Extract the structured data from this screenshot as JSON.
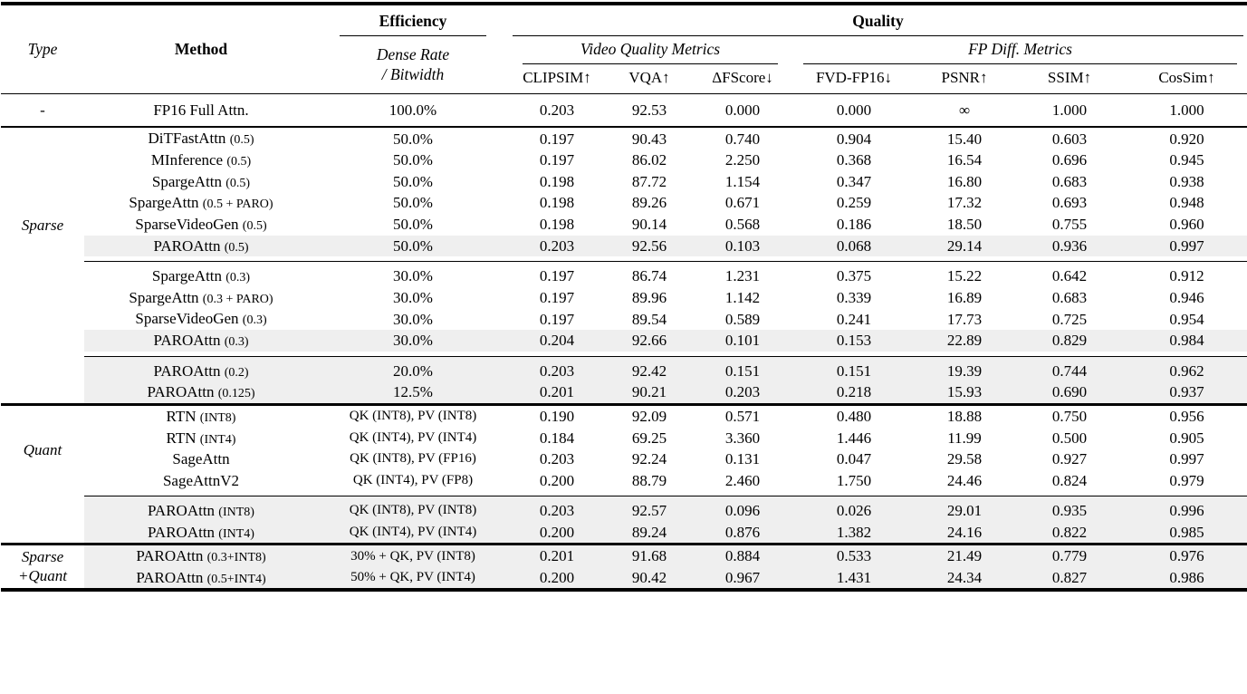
{
  "table": {
    "colors": {
      "highlight": "#efefef",
      "rule": "#000000",
      "text": "#000000"
    },
    "header": {
      "type": "Type",
      "method": "Method",
      "efficiency": "Efficiency",
      "quality": "Quality",
      "dense_rate_line1": "Dense Rate",
      "dense_rate_line2": "/ Bitwidth",
      "video_quality_metrics": "Video Quality Metrics",
      "fp_diff_metrics": "FP Diff. Metrics",
      "metric_columns": [
        "CLIPSIM↑",
        "VQA↑",
        "ΔFScore↓",
        "FVD-FP16↓",
        "PSNR↑",
        "SSIM↑",
        "CosSim↑"
      ]
    },
    "sections": [
      {
        "type_label_lines": [
          "-"
        ],
        "rule_after": "medium",
        "groups": [
          {
            "rows": [
              {
                "method": "FP16 Full Attn.",
                "dense": "100.0%",
                "highlight": false,
                "fp16": true,
                "values": [
                  "0.203",
                  "92.53",
                  "0.000",
                  "0.000",
                  "∞",
                  "1.000",
                  "1.000"
                ]
              }
            ]
          }
        ]
      },
      {
        "type_label_lines": [
          "Sparse"
        ],
        "rule_after": "thick",
        "groups": [
          {
            "rows": [
              {
                "method": "DiTFastAttn (0.5)",
                "dense": "50.0%",
                "highlight": false,
                "values": [
                  "0.197",
                  "90.43",
                  "0.740",
                  "0.904",
                  "15.40",
                  "0.603",
                  "0.920"
                ]
              },
              {
                "method": "MInference (0.5)",
                "dense": "50.0%",
                "highlight": false,
                "values": [
                  "0.197",
                  "86.02",
                  "2.250",
                  "0.368",
                  "16.54",
                  "0.696",
                  "0.945"
                ]
              },
              {
                "method": "SpargeAttn (0.5)",
                "dense": "50.0%",
                "highlight": false,
                "values": [
                  "0.198",
                  "87.72",
                  "1.154",
                  "0.347",
                  "16.80",
                  "0.683",
                  "0.938"
                ]
              },
              {
                "method": "SpargeAttn (0.5 + PARO)",
                "dense": "50.0%",
                "highlight": false,
                "values": [
                  "0.198",
                  "89.26",
                  "0.671",
                  "0.259",
                  "17.32",
                  "0.693",
                  "0.948"
                ]
              },
              {
                "method": "SparseVideoGen (0.5)",
                "dense": "50.0%",
                "highlight": false,
                "values": [
                  "0.198",
                  "90.14",
                  "0.568",
                  "0.186",
                  "18.50",
                  "0.755",
                  "0.960"
                ]
              },
              {
                "method": "PAROAttn (0.5)",
                "dense": "50.0%",
                "highlight": true,
                "values": [
                  "0.203",
                  "92.56",
                  "0.103",
                  "0.068",
                  "29.14",
                  "0.936",
                  "0.997"
                ]
              }
            ]
          },
          {
            "rows": [
              {
                "method": "SpargeAttn (0.3)",
                "dense": "30.0%",
                "highlight": false,
                "values": [
                  "0.197",
                  "86.74",
                  "1.231",
                  "0.375",
                  "15.22",
                  "0.642",
                  "0.912"
                ]
              },
              {
                "method": "SpargeAttn (0.3 + PARO)",
                "dense": "30.0%",
                "highlight": false,
                "values": [
                  "0.197",
                  "89.96",
                  "1.142",
                  "0.339",
                  "16.89",
                  "0.683",
                  "0.946"
                ]
              },
              {
                "method": "SparseVideoGen (0.3)",
                "dense": "30.0%",
                "highlight": false,
                "values": [
                  "0.197",
                  "89.54",
                  "0.589",
                  "0.241",
                  "17.73",
                  "0.725",
                  "0.954"
                ]
              },
              {
                "method": "PAROAttn (0.3)",
                "dense": "30.0%",
                "highlight": true,
                "values": [
                  "0.204",
                  "92.66",
                  "0.101",
                  "0.153",
                  "22.89",
                  "0.829",
                  "0.984"
                ]
              }
            ]
          },
          {
            "rows": [
              {
                "method": "PAROAttn (0.2)",
                "dense": "20.0%",
                "highlight": true,
                "values": [
                  "0.203",
                  "92.42",
                  "0.151",
                  "0.151",
                  "19.39",
                  "0.744",
                  "0.962"
                ]
              },
              {
                "method": "PAROAttn (0.125)",
                "dense": "12.5%",
                "highlight": true,
                "values": [
                  "0.201",
                  "90.21",
                  "0.203",
                  "0.218",
                  "15.93",
                  "0.690",
                  "0.937"
                ]
              }
            ]
          }
        ]
      },
      {
        "type_label_lines": [
          "Quant"
        ],
        "rule_after": "thick",
        "groups": [
          {
            "rows": [
              {
                "method": "RTN (INT8)",
                "dense": "QK (INT8), PV (INT8)",
                "highlight": false,
                "values": [
                  "0.190",
                  "92.09",
                  "0.571",
                  "0.480",
                  "18.88",
                  "0.750",
                  "0.956"
                ]
              },
              {
                "method": "RTN (INT4)",
                "dense": "QK (INT4), PV (INT4)",
                "highlight": false,
                "values": [
                  "0.184",
                  "69.25",
                  "3.360",
                  "1.446",
                  "11.99",
                  "0.500",
                  "0.905"
                ]
              },
              {
                "method": "SageAttn",
                "dense": "QK (INT8), PV (FP16)",
                "highlight": false,
                "values": [
                  "0.203",
                  "92.24",
                  "0.131",
                  "0.047",
                  "29.58",
                  "0.927",
                  "0.997"
                ]
              },
              {
                "method": "SageAttnV2",
                "dense": "QK (INT4), PV (FP8)",
                "highlight": false,
                "values": [
                  "0.200",
                  "88.79",
                  "2.460",
                  "1.750",
                  "24.46",
                  "0.824",
                  "0.979"
                ]
              }
            ]
          },
          {
            "rows": [
              {
                "method": "PAROAttn (INT8)",
                "dense": "QK (INT8), PV (INT8)",
                "highlight": true,
                "values": [
                  "0.203",
                  "92.57",
                  "0.096",
                  "0.026",
                  "29.01",
                  "0.935",
                  "0.996"
                ]
              },
              {
                "method": "PAROAttn (INT4)",
                "dense": "QK (INT4), PV (INT4)",
                "highlight": true,
                "values": [
                  "0.200",
                  "89.24",
                  "0.876",
                  "1.382",
                  "24.16",
                  "0.822",
                  "0.985"
                ]
              }
            ]
          }
        ]
      },
      {
        "type_label_lines": [
          "Sparse",
          "+Quant"
        ],
        "rule_after": "none",
        "groups": [
          {
            "rows": [
              {
                "method": "PAROAttn (0.3+INT8)",
                "dense": "30% + QK, PV (INT8)",
                "highlight": true,
                "values": [
                  "0.201",
                  "91.68",
                  "0.884",
                  "0.533",
                  "21.49",
                  "0.779",
                  "0.976"
                ]
              },
              {
                "method": "PAROAttn (0.5+INT4)",
                "dense": "50% + QK, PV (INT4)",
                "highlight": true,
                "values": [
                  "0.200",
                  "90.42",
                  "0.967",
                  "1.431",
                  "24.34",
                  "0.827",
                  "0.986"
                ]
              }
            ]
          }
        ]
      }
    ]
  }
}
